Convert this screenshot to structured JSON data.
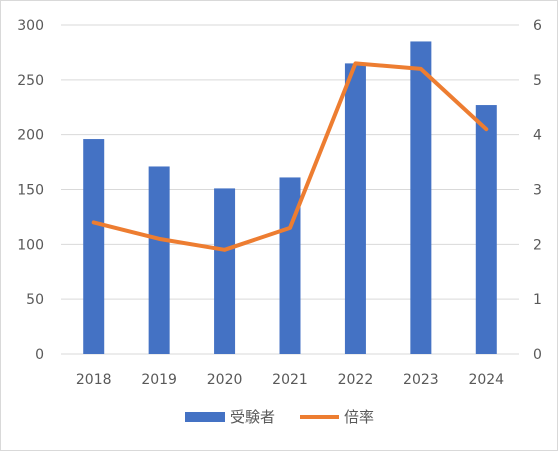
{
  "chart_data": {
    "type": "bar",
    "categories": [
      "2018",
      "2019",
      "2020",
      "2021",
      "2022",
      "2023",
      "2024"
    ],
    "series": [
      {
        "name": "受験者",
        "type": "bar",
        "axis": "left",
        "color": "#4472C4",
        "values": [
          196,
          171,
          151,
          161,
          265,
          285,
          227
        ]
      },
      {
        "name": "倍率",
        "type": "line",
        "axis": "right",
        "color": "#ED7D31",
        "values": [
          2.4,
          2.1,
          1.9,
          2.3,
          5.3,
          5.2,
          4.1
        ]
      }
    ],
    "left_axis": {
      "min": 0,
      "max": 300,
      "step": 50,
      "ticks": [
        "0",
        "50",
        "100",
        "150",
        "200",
        "250",
        "300"
      ]
    },
    "right_axis": {
      "min": 0,
      "max": 6,
      "step": 1,
      "ticks": [
        "0",
        "1",
        "2",
        "3",
        "4",
        "5",
        "6"
      ]
    },
    "grid": true,
    "legend_position": "bottom",
    "legend": [
      "受験者",
      "倍率"
    ]
  }
}
